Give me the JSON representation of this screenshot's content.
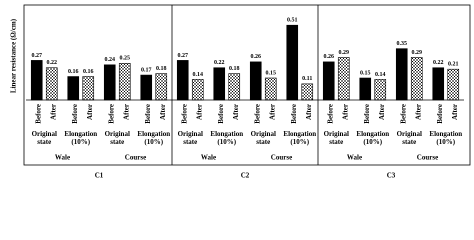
{
  "chart_data": [
    {
      "type": "bar",
      "title": "C1",
      "ylabel": "Linear resistance (Ω/cm)",
      "categories": [
        "Original state",
        "Elongation (10%)",
        "Original state",
        "Elongation (10%)"
      ],
      "supergroups": [
        "Wale",
        "Course"
      ],
      "series": [
        {
          "name": "Before",
          "color": "#000000",
          "values": [
            0.27,
            0.16,
            0.24,
            0.17
          ]
        },
        {
          "name": "After",
          "color": "#ffffff",
          "hatch": true,
          "values": [
            0.22,
            0.16,
            0.25,
            0.18
          ]
        }
      ],
      "ylim": [
        0,
        0.6
      ]
    },
    {
      "type": "bar",
      "title": "C2",
      "categories": [
        "Original state",
        "Elongation (10%)",
        "Original state",
        "Elongation (10%)"
      ],
      "supergroups": [
        "Wale",
        "Course"
      ],
      "series": [
        {
          "name": "Before",
          "color": "#000000",
          "values": [
            0.27,
            0.22,
            0.26,
            0.51
          ]
        },
        {
          "name": "After",
          "color": "#ffffff",
          "hatch": true,
          "values": [
            0.14,
            0.18,
            0.15,
            0.11
          ]
        }
      ],
      "ylim": [
        0,
        0.6
      ]
    },
    {
      "type": "bar",
      "title": "C3",
      "categories": [
        "Original state",
        "Elongation (10%)",
        "Original state",
        "Elongation (10%)"
      ],
      "supergroups": [
        "Wale",
        "Course"
      ],
      "series": [
        {
          "name": "Before",
          "color": "#000000",
          "values": [
            0.26,
            0.15,
            0.35,
            0.22
          ]
        },
        {
          "name": "After",
          "color": "#ffffff",
          "hatch": true,
          "values": [
            0.29,
            0.14,
            0.29,
            0.21
          ]
        }
      ],
      "ylim": [
        0,
        0.6
      ]
    }
  ]
}
